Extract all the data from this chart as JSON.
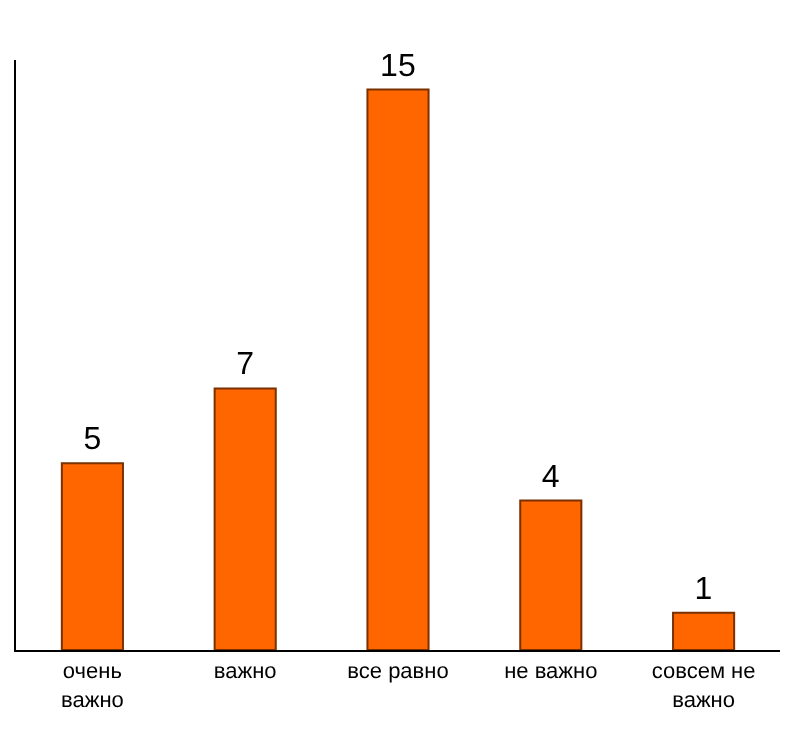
{
  "chart_data": {
    "type": "bar",
    "categories": [
      "очень важно",
      "важно",
      "все равно",
      "не важно",
      "совсем не важно"
    ],
    "values": [
      5,
      7,
      15,
      4,
      1
    ],
    "color": "#ff6600",
    "data_labels": true,
    "tick_labels": "x",
    "legend": false
  }
}
